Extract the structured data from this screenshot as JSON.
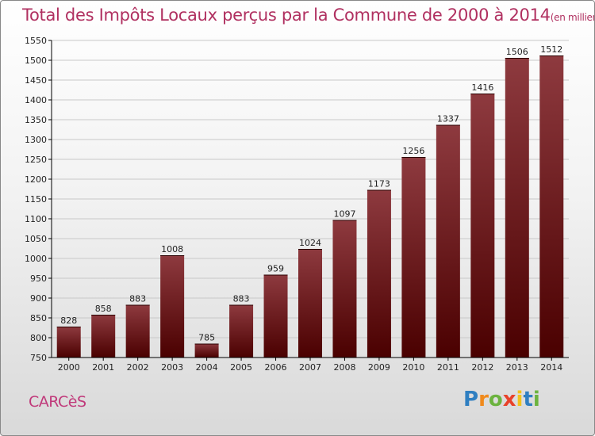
{
  "title": "Total des Impôts Locaux perçus par la Commune de 2000 à 2014",
  "title_unit": "(en milliers d'€)",
  "commune": "CARCèS",
  "brand": {
    "letters": [
      "P",
      "r",
      "o",
      "x",
      "i",
      "t",
      "i"
    ],
    "colors": [
      "#2f7fc1",
      "#f08a1c",
      "#6cb33f",
      "#e8422a",
      "#f2c21b",
      "#2f7fc1",
      "#6cb33f"
    ]
  },
  "colors": {
    "bar_top": "#8e3a3f",
    "bar_bottom": "#4a0000",
    "axis": "#000000",
    "grid": "#c8c8c8"
  },
  "chart_data": {
    "type": "bar",
    "title": "Total des Impôts Locaux perçus par la Commune de 2000 à 2014",
    "xlabel": "",
    "ylabel": "",
    "categories": [
      "2000",
      "2001",
      "2002",
      "2003",
      "2004",
      "2005",
      "2006",
      "2007",
      "2008",
      "2009",
      "2010",
      "2011",
      "2012",
      "2013",
      "2014"
    ],
    "values": [
      828,
      858,
      883,
      1008,
      785,
      883,
      959,
      1024,
      1097,
      1173,
      1256,
      1337,
      1416,
      1506,
      1512
    ],
    "ylim": [
      750,
      1550
    ],
    "yticks": [
      750,
      800,
      850,
      900,
      950,
      1000,
      1050,
      1100,
      1150,
      1200,
      1250,
      1300,
      1350,
      1400,
      1450,
      1500,
      1550
    ],
    "grid": true
  }
}
